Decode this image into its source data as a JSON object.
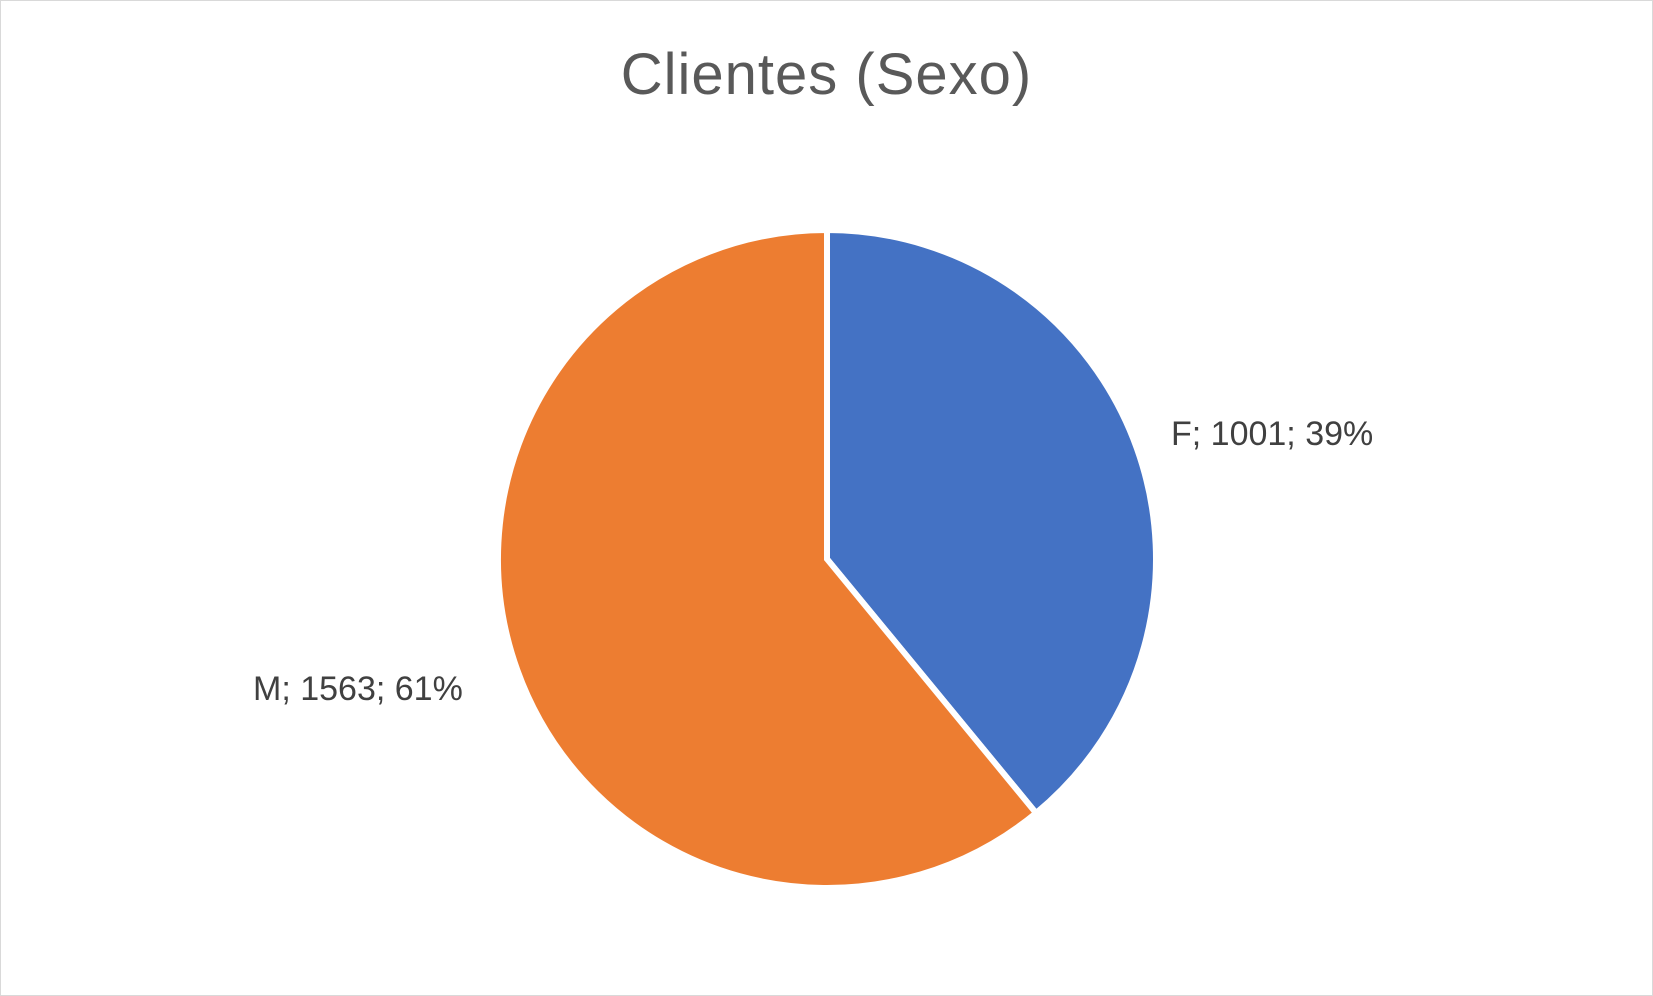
{
  "chart_data": {
    "type": "pie",
    "title": "Clientes (Sexo)",
    "start_angle_deg": 0,
    "direction": "clockwise",
    "slices": [
      {
        "category": "F",
        "value": 1001,
        "percent": 39,
        "label": "F; 1001; 39%",
        "color": "#4472C4"
      },
      {
        "category": "M",
        "value": 1563,
        "percent": 61,
        "label": "M; 1563; 61%",
        "color": "#ED7D31"
      }
    ],
    "legend": "none",
    "grid": false
  }
}
